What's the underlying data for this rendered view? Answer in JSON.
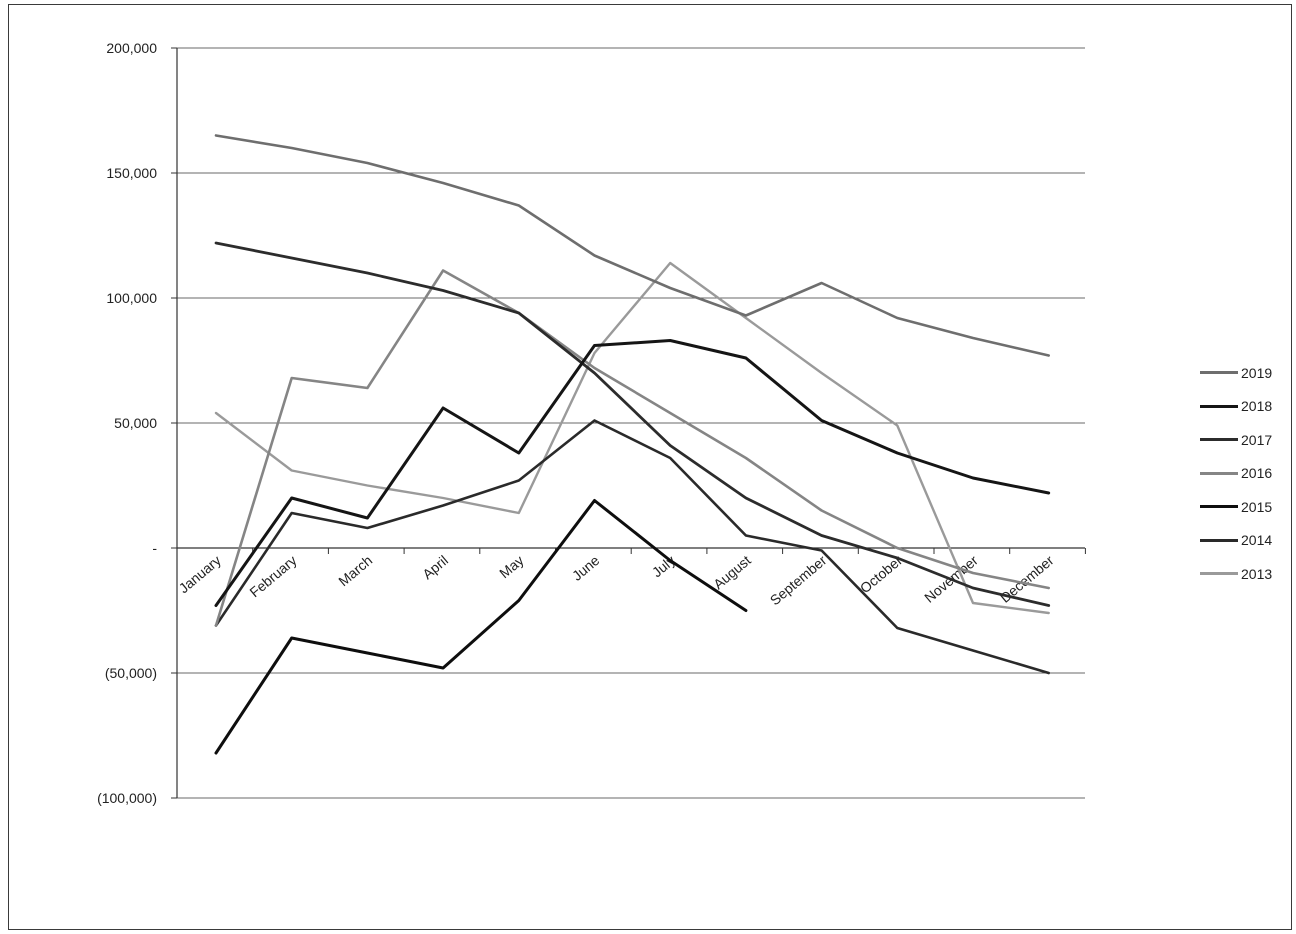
{
  "chart_data": {
    "type": "line",
    "title": "",
    "xlabel": "",
    "ylabel": "",
    "categories": [
      "January",
      "February",
      "March",
      "April",
      "May",
      "June",
      "July",
      "August",
      "September",
      "October",
      "November",
      "December"
    ],
    "y_tick_labels": [
      "200,000",
      "150,000",
      "100,000",
      "50,000",
      "-",
      "(50,000)",
      "(100,000)"
    ],
    "y_tick_values": [
      200000,
      150000,
      100000,
      50000,
      0,
      -50000,
      -100000
    ],
    "ylim": [
      -100000,
      200000
    ],
    "grid": true,
    "legend_position": "right",
    "series": [
      {
        "name": "2019",
        "color": "#6e6e6e",
        "width": 2.6,
        "values": [
          165000,
          160000,
          154000,
          146000,
          137000,
          117000,
          104000,
          93000,
          106000,
          92000,
          84000,
          77000
        ]
      },
      {
        "name": "2018",
        "color": "#151515",
        "width": 3.0,
        "values": [
          -23000,
          20000,
          12000,
          56000,
          38000,
          81000,
          83000,
          76000,
          51000,
          38000,
          28000,
          22000
        ]
      },
      {
        "name": "2017",
        "color": "#2c2c2c",
        "width": 2.8,
        "values": [
          122000,
          116000,
          110000,
          103000,
          94000,
          70000,
          41000,
          20000,
          5000,
          -4000,
          -16000,
          -23000
        ]
      },
      {
        "name": "2016",
        "color": "#858585",
        "width": 2.6,
        "values": [
          -31000,
          68000,
          64000,
          111000,
          94000,
          72000,
          54000,
          36000,
          15000,
          0,
          -10000,
          -16000
        ]
      },
      {
        "name": "2015",
        "color": "#0e0e0e",
        "width": 3.0,
        "values": [
          -82000,
          -36000,
          -42000,
          -48000,
          -21000,
          19000,
          -5000,
          -25000,
          null,
          null,
          null,
          null
        ]
      },
      {
        "name": "2014",
        "color": "#2a2a2a",
        "width": 2.6,
        "values": [
          -31000,
          14000,
          8000,
          17000,
          27000,
          51000,
          36000,
          5000,
          -1000,
          -32000,
          -41000,
          -50000
        ]
      },
      {
        "name": "2013",
        "color": "#9a9a9a",
        "width": 2.4,
        "values": [
          54000,
          31000,
          25000,
          20000,
          14000,
          78000,
          114000,
          92000,
          70000,
          49000,
          -22000,
          -26000
        ]
      }
    ]
  }
}
